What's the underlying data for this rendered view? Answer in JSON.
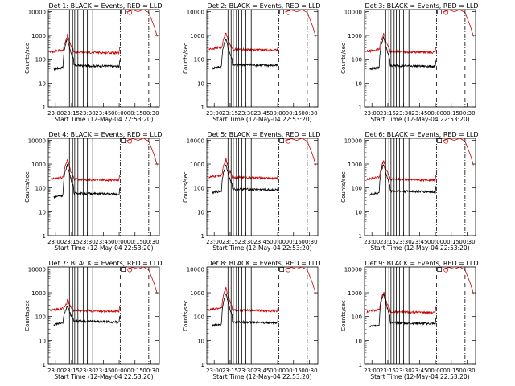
{
  "figure": {
    "xlabel": "Start Time (12-May-04 22:53:20)",
    "ylabel": "Counts/sec",
    "x_ticks": [
      "23:00",
      "23:15",
      "23:30",
      "23:45",
      "00:00",
      "00:15",
      "00:30"
    ],
    "y_ticks": [
      "1",
      "10",
      "100",
      "1000",
      "10000"
    ]
  },
  "chart_data": [
    {
      "type": "line",
      "title": "Det 1: BLACK = Events, RED = LLD",
      "x_range_min": [
        0,
        105
      ],
      "y_log": true,
      "ylim": [
        1,
        12000
      ],
      "series": [
        {
          "name": "Events",
          "color": "#000000",
          "baseline": 55,
          "peak": 700
        },
        {
          "name": "LLD",
          "color": "#cc0000",
          "baseline": 200,
          "peak": 900
        }
      ],
      "event_lines_min": [
        20,
        23,
        25,
        28,
        30,
        33,
        37,
        42
      ],
      "dashdot_lines_min": [
        68,
        95
      ]
    },
    {
      "type": "line",
      "title": "Det 2: BLACK = Events, RED = LLD",
      "x_range_min": [
        0,
        105
      ],
      "y_log": true,
      "ylim": [
        1,
        12000
      ],
      "series": [
        {
          "name": "Events",
          "color": "#000000",
          "baseline": 60,
          "peak": 700
        },
        {
          "name": "LLD",
          "color": "#cc0000",
          "baseline": 260,
          "peak": 1200
        }
      ],
      "event_lines_min": [
        20,
        23,
        25,
        28,
        30,
        33,
        37,
        42
      ],
      "dashdot_lines_min": [
        68,
        95
      ]
    },
    {
      "type": "line",
      "title": "Det 3: BLACK = Events, RED = LLD",
      "x_range_min": [
        0,
        105
      ],
      "y_log": true,
      "ylim": [
        1,
        12000
      ],
      "series": [
        {
          "name": "Events",
          "color": "#000000",
          "baseline": 55,
          "peak": 800
        },
        {
          "name": "LLD",
          "color": "#cc0000",
          "baseline": 210,
          "peak": 1100
        }
      ],
      "event_lines_min": [
        20,
        23,
        25,
        28,
        30,
        33,
        37,
        42
      ],
      "dashdot_lines_min": [
        68,
        95
      ]
    },
    {
      "type": "line",
      "title": "Det 4: BLACK = Events, RED = LLD",
      "x_range_min": [
        0,
        105
      ],
      "y_log": true,
      "ylim": [
        1,
        12000
      ],
      "series": [
        {
          "name": "Events",
          "color": "#000000",
          "baseline": 60,
          "peak": 900
        },
        {
          "name": "LLD",
          "color": "#cc0000",
          "baseline": 230,
          "peak": 1400
        }
      ],
      "event_lines_min": [
        20,
        23,
        25,
        28,
        30,
        33,
        37,
        42
      ],
      "dashdot_lines_min": [
        68,
        95
      ]
    },
    {
      "type": "line",
      "title": "Det 5: BLACK = Events, RED = LLD",
      "x_range_min": [
        0,
        105
      ],
      "y_log": true,
      "ylim": [
        1,
        12000
      ],
      "series": [
        {
          "name": "Events",
          "color": "#000000",
          "baseline": 90,
          "peak": 900
        },
        {
          "name": "LLD",
          "color": "#cc0000",
          "baseline": 280,
          "peak": 1400
        }
      ],
      "event_lines_min": [
        20,
        23,
        25,
        28,
        30,
        33,
        37,
        42
      ],
      "dashdot_lines_min": [
        68,
        95
      ]
    },
    {
      "type": "line",
      "title": "Det 6: BLACK = Events, RED = LLD",
      "x_range_min": [
        0,
        105
      ],
      "y_log": true,
      "ylim": [
        1,
        12000
      ],
      "series": [
        {
          "name": "Events",
          "color": "#000000",
          "baseline": 75,
          "peak": 1000
        },
        {
          "name": "LLD",
          "color": "#cc0000",
          "baseline": 230,
          "peak": 1300
        }
      ],
      "event_lines_min": [
        20,
        23,
        25,
        28,
        30,
        33,
        37,
        42
      ],
      "dashdot_lines_min": [
        68,
        95
      ]
    },
    {
      "type": "line",
      "title": "Det 7: BLACK = Events, RED = LLD",
      "x_range_min": [
        0,
        105
      ],
      "y_log": true,
      "ylim": [
        1,
        12000
      ],
      "series": [
        {
          "name": "Events",
          "color": "#000000",
          "baseline": 65,
          "peak": 260
        },
        {
          "name": "LLD",
          "color": "#cc0000",
          "baseline": 180,
          "peak": 400
        }
      ],
      "event_lines_min": [
        20,
        23,
        25,
        28,
        30,
        33,
        37,
        42
      ],
      "dashdot_lines_min": [
        68,
        95
      ]
    },
    {
      "type": "line",
      "title": "Det 8: BLACK = Events, RED = LLD",
      "x_range_min": [
        0,
        105
      ],
      "y_log": true,
      "ylim": [
        1,
        12000
      ],
      "series": [
        {
          "name": "Events",
          "color": "#000000",
          "baseline": 60,
          "peak": 900
        },
        {
          "name": "LLD",
          "color": "#cc0000",
          "baseline": 190,
          "peak": 1500
        }
      ],
      "event_lines_min": [
        20,
        23,
        25,
        28,
        30,
        33,
        37,
        42
      ],
      "dashdot_lines_min": [
        68,
        95
      ]
    },
    {
      "type": "line",
      "title": "Det 9: BLACK = Events, RED = LLD",
      "x_range_min": [
        0,
        105
      ],
      "y_log": true,
      "ylim": [
        1,
        12000
      ],
      "series": [
        {
          "name": "Events",
          "color": "#000000",
          "baseline": 55,
          "peak": 900
        },
        {
          "name": "LLD",
          "color": "#cc0000",
          "baseline": 160,
          "peak": 1000
        }
      ],
      "event_lines_min": [
        20,
        23,
        25,
        28,
        30,
        33,
        37,
        42
      ],
      "dashdot_lines_min": [
        68,
        95
      ]
    }
  ]
}
